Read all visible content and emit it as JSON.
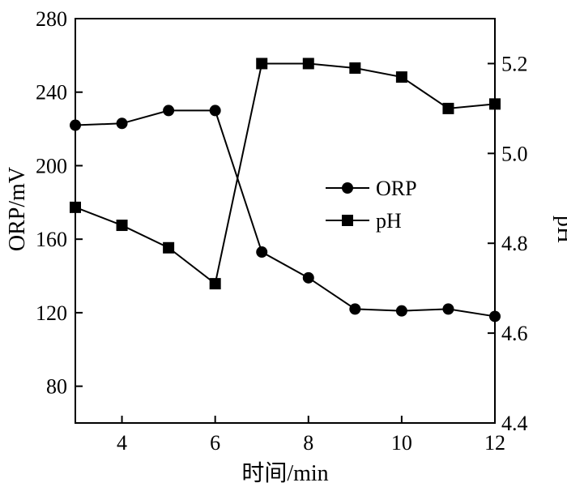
{
  "chart_data": {
    "type": "line",
    "title": "",
    "xlabel": "时间/min",
    "ylabel_left": "ORP/mV",
    "ylabel_right": "pH",
    "xlim": [
      3,
      12
    ],
    "ylim_left": [
      60,
      280
    ],
    "ylim_right": [
      4.4,
      5.3
    ],
    "x_ticks": [
      4,
      6,
      8,
      10,
      12
    ],
    "y_ticks_left": [
      80,
      120,
      160,
      200,
      240,
      280
    ],
    "y_ticks_right": [
      "4.4",
      "4.6",
      "4.8",
      "5.0",
      "5.2"
    ],
    "x": [
      3,
      4,
      5,
      6,
      7,
      8,
      9,
      10,
      11,
      12
    ],
    "series": [
      {
        "name": "ORP",
        "axis": "left",
        "marker": "circle",
        "values": [
          222,
          223,
          230,
          230,
          153,
          139,
          122,
          121,
          122,
          118
        ]
      },
      {
        "name": "pH",
        "axis": "right",
        "marker": "square",
        "values": [
          4.88,
          4.84,
          4.79,
          4.71,
          5.2,
          5.2,
          5.19,
          5.17,
          5.1,
          5.11
        ]
      }
    ],
    "legend_position": "center-right",
    "grid": false
  }
}
